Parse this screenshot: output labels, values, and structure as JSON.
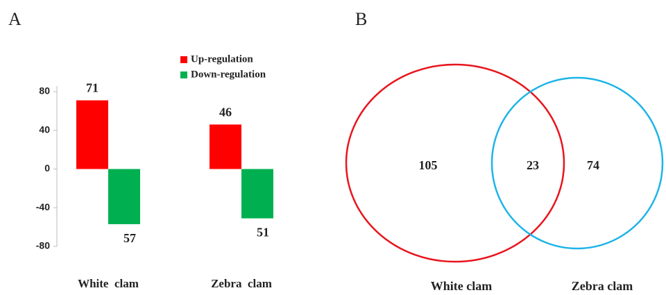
{
  "chart_data": [
    {
      "type": "bar",
      "panel": "A",
      "categories": [
        "White  clam",
        "Zebra  clam"
      ],
      "series": [
        {
          "name": "Up-regulation",
          "color": "#ff0000",
          "values": [
            71,
            46
          ]
        },
        {
          "name": "Down-regulation",
          "color": "#00b050",
          "values": [
            -57,
            -51
          ],
          "value_labels": [
            "57",
            "51"
          ]
        }
      ],
      "ylim": [
        -80,
        80
      ],
      "yticks": [
        -80,
        -40,
        0,
        40,
        80
      ],
      "legend": "top-right"
    },
    {
      "type": "venn",
      "panel": "B",
      "sets": [
        {
          "name": "White clam",
          "color": "#e8141c"
        },
        {
          "name": "Zebra clam",
          "color": "#1cb4e8"
        }
      ],
      "values": [
        105,
        23,
        74
      ]
    }
  ]
}
